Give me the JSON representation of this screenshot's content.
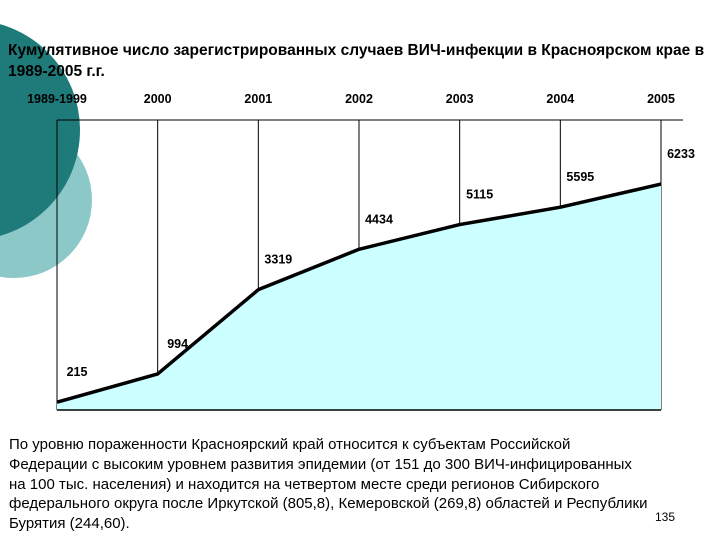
{
  "slide": {
    "title": "Кумулятивное число зарегистрированных случаев ВИЧ-инфекции в Красноярском крае в 1989-2005 г.г.",
    "body": "По уровню пораженности Красноярский край относится к субъектам Российской Федерации с высоким уровнем развития эпидемии (от 151 до 300 ВИЧ-инфицированных на 100 тыс. населения) и находится на четвертом месте среди регионов Сибирского федерального округа после Иркутской (805,8), Кемеровской (269,8) областей  и Республики Бурятия (244,60).",
    "page_number": "135"
  },
  "colors": {
    "area_fill": "#ccffff",
    "line": "#000000",
    "decor_dark": "#1f7a7a",
    "decor_light": "#8cc8c8"
  },
  "chart_data": {
    "type": "area",
    "categories": [
      "1989-1999",
      "2000",
      "2001",
      "2002",
      "2003",
      "2004",
      "2005"
    ],
    "values": [
      215,
      994,
      3319,
      4434,
      5115,
      5595,
      6233
    ],
    "data_labels": [
      "215",
      "994",
      "3319",
      "4434",
      "5115",
      "5595",
      "6233"
    ],
    "xlabel": "",
    "ylabel": "",
    "ylim": [
      0,
      8000
    ],
    "x_axis_position": "top",
    "grid": "vertical",
    "legend": "none"
  }
}
